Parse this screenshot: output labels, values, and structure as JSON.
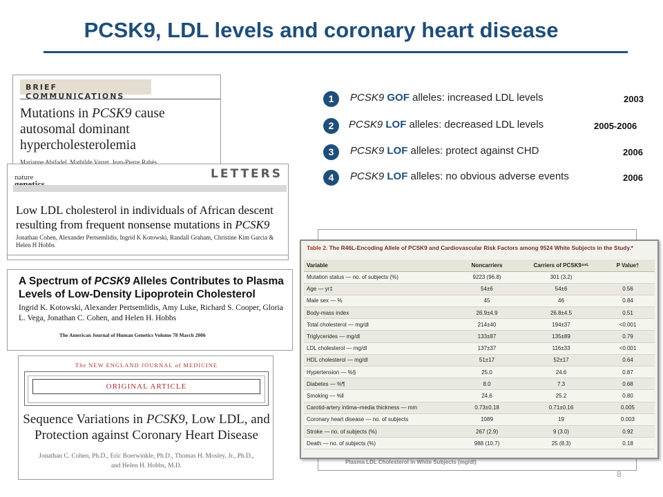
{
  "title": "PCSK9, LDL levels and coronary heart disease",
  "clippings": {
    "brief": {
      "section": "BRIEF COMMUNICATIONS",
      "headline": [
        "Mutations in ",
        "PCSK9",
        " cause autosomal dominant hypercholesterolemia"
      ],
      "authors_fragment": "Marianne Abifadel, Mathilde Varret, Jean-Pierre Rabès"
    },
    "letters": {
      "section": "LETTERS",
      "journal_top": "nature",
      "journal_bottom": "genetics",
      "headline": [
        "Low LDL cholesterol in individuals of African descent resulting from frequent nonsense mutations in ",
        "PCSK9"
      ],
      "authors": "Jonathan Cohen, Alexander Pertsemlidis, Ingrid K Kotowski, Randall Graham, Christine Kim Garcia & Helen H Hobbs"
    },
    "ajhg": {
      "headline": [
        "A Spectrum of ",
        "PCSK9",
        " Alleles Contributes to Plasma Levels of Low-Density Lipoprotein Cholesterol"
      ],
      "authors": "Ingrid K. Kotowski, Alexander Pertsemlidis, Amy Luke, Richard S. Cooper, Gloria L. Vega, Jonathan C. Cohen, and Helen H. Hobbs",
      "citation": "The American Journal of Human Genetics   Volume 78   March 2006"
    },
    "nejm": {
      "journal": "The NEW ENGLAND JOURNAL of MEDICINE",
      "section": "ORIGINAL ARTICLE",
      "headline": [
        "Sequence Variations in ",
        "PCSK9",
        ", Low LDL, and Protection against Coronary Heart Disease"
      ],
      "authors_line1": "Jonathan C. Cohen, Ph.D., Eric Boerwinkle, Ph.D., Thomas H. Mosley, Jr., Ph.D.,",
      "authors_line2": "and Helen H. Hobbs, M.D."
    }
  },
  "points": [
    {
      "num": "1",
      "gene": "PCSK9",
      "kind": "GOF",
      "text": " alleles: increased LDL levels",
      "year": "2003"
    },
    {
      "num": "2",
      "gene": "PCSK9",
      "kind": "LOF",
      "text": " alleles: decreased LDL levels",
      "year": "2005-2006"
    },
    {
      "num": "3",
      "gene": "PCSK9",
      "kind": "LOF",
      "text": " alleles: protect against CHD",
      "year": "2006"
    },
    {
      "num": "4",
      "gene": "PCSK9",
      "kind": "LOF",
      "text": " alleles: no obvious adverse events",
      "year": "2006"
    }
  ],
  "table": {
    "label": "Table 2.",
    "caption": " The R46L-Encoding Allele of PCSK9 and Cardiovascular Risk Factors among 9524 White Subjects in the Study.*",
    "headers": [
      "Variable",
      "Noncarriers",
      "Carriers of PCSK9⁴⁶ᴸ",
      "P Value†"
    ],
    "rows": [
      [
        "Mutation status — no. of subjects (%)",
        "9223 (96.8)",
        "301 (3.2)",
        ""
      ],
      [
        "Age — yr‡",
        "54±6",
        "54±6",
        "0.56"
      ],
      [
        "Male sex — %",
        "45",
        "46",
        "0.84"
      ],
      [
        "Body-mass index",
        "26.9±4.9",
        "26.8±4.5",
        "0.51"
      ],
      [
        "Total cholesterol — mg/dl",
        "214±40",
        "194±37",
        "<0.001"
      ],
      [
        "Triglycerides — mg/dl",
        "133±87",
        "135±89",
        "0.79"
      ],
      [
        "LDL cholesterol — mg/dl",
        "137±37",
        "116±33",
        "<0.001"
      ],
      [
        "HDL cholesterol — mg/dl",
        "51±17",
        "52±17",
        "0.64"
      ],
      [
        "Hypertension — %§",
        "25.0",
        "24.6",
        "0.87"
      ],
      [
        "Diabetes — %¶",
        "8.0",
        "7.3",
        "0.68"
      ],
      [
        "Smoking — %‖",
        "24.6",
        "25.2",
        "0.80"
      ],
      [
        "Carotid-artery intima–media thickness — mm",
        "0.73±0.18",
        "0.71±0.16",
        "0.005"
      ],
      [
        "Coronary heart disease — no. of subjects",
        "1089",
        "19",
        "0.003"
      ],
      [
        "Stroke — no. of subjects (%)",
        "267 (2.9)",
        "9 (3.0)",
        "0.92"
      ],
      [
        "Death — no. of subjects (%)",
        "988 (10.7)",
        "25 (8.3)",
        "0.18"
      ]
    ],
    "behind_text": "Plasma LDL Cholesterol in White Subjects (mg/dl)"
  },
  "page_number": "8",
  "colors": {
    "accent": "#1f4e79",
    "table_caption": "#7a2c2c",
    "nejm_red": "#a62d2d"
  }
}
